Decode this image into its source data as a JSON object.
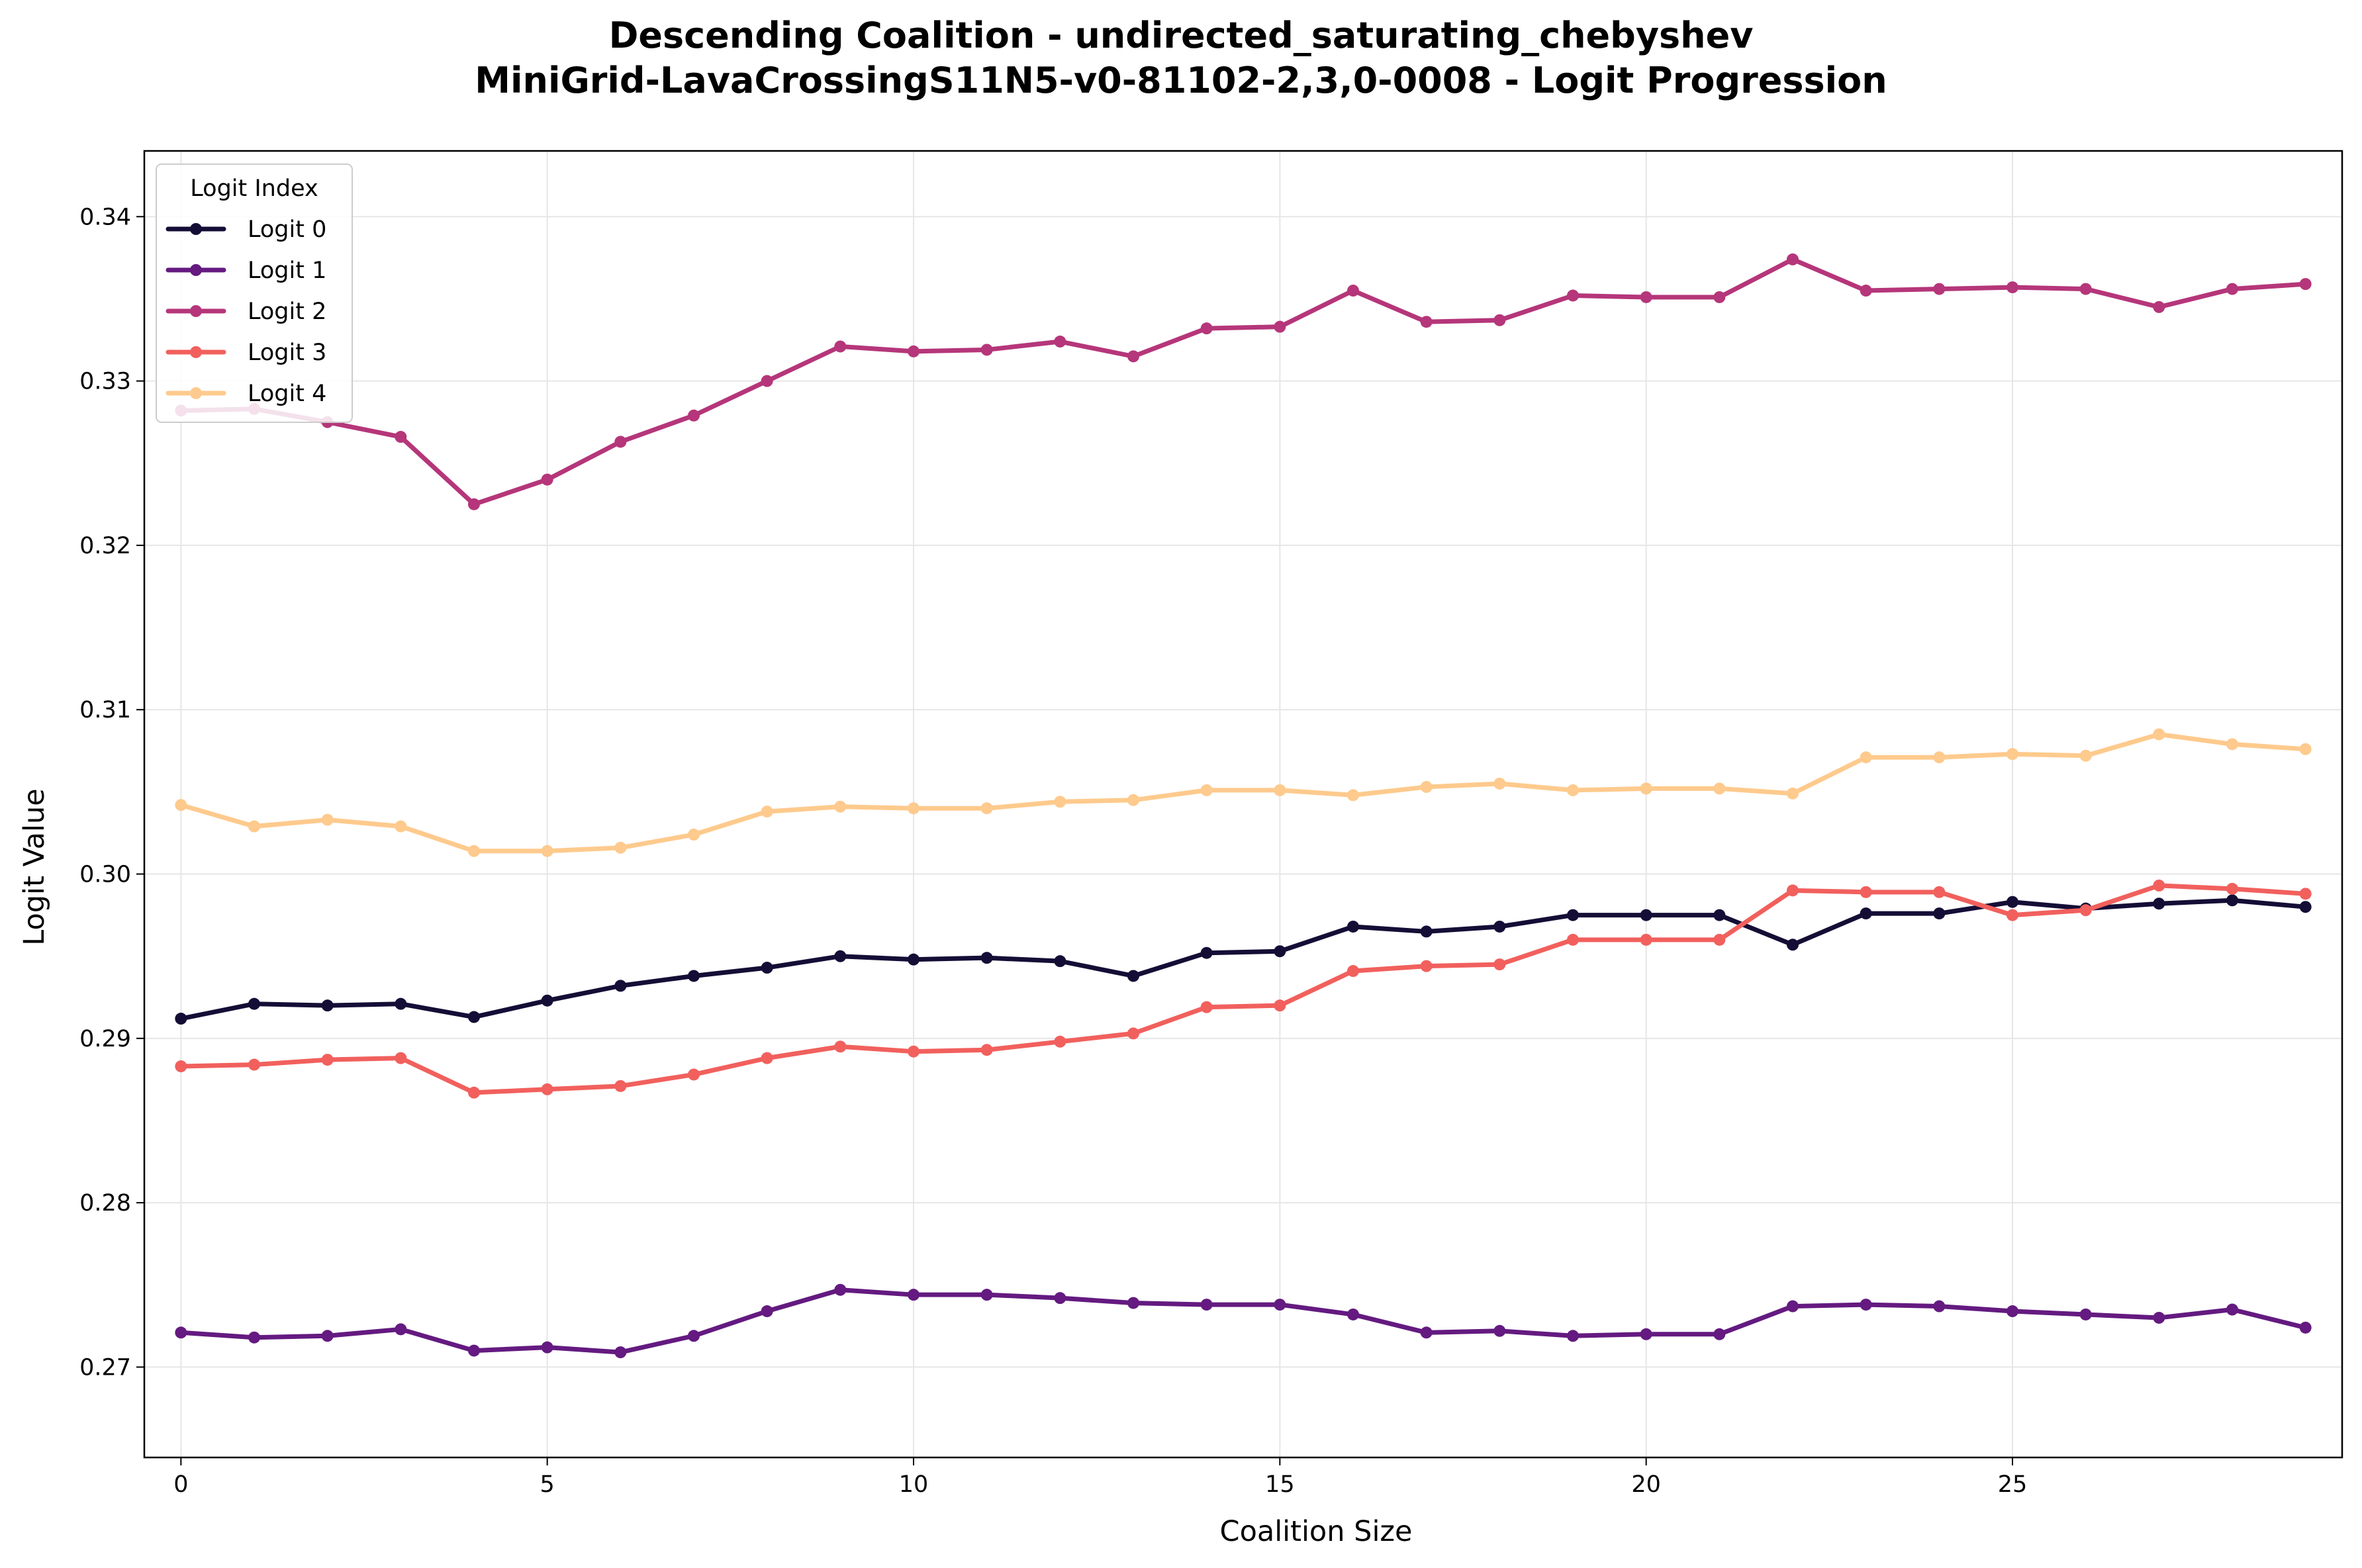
{
  "chart_data": {
    "type": "line",
    "title": [
      "Descending Coalition - undirected_saturating_chebyshev",
      "MiniGrid-LavaCrossingS11N5-v0-81102-2,3,0-0008 - Logit Progression"
    ],
    "xlabel": "Coalition Size",
    "ylabel": "Logit Value",
    "xlim": [
      -0.5,
      29.5
    ],
    "ylim": [
      0.2645,
      0.344
    ],
    "xticks": [
      0,
      5,
      10,
      15,
      20,
      25
    ],
    "yticks": [
      0.27,
      0.28,
      0.29,
      0.3,
      0.31,
      0.32,
      0.33,
      0.34
    ],
    "ytick_labels": [
      "0.27",
      "0.28",
      "0.29",
      "0.30",
      "0.31",
      "0.32",
      "0.33",
      "0.34"
    ],
    "grid": true,
    "legend": {
      "title": "Logit Index",
      "placement": "upper-left"
    },
    "x": [
      0,
      1,
      2,
      3,
      4,
      5,
      6,
      7,
      8,
      9,
      10,
      11,
      12,
      13,
      14,
      15,
      16,
      17,
      18,
      19,
      20,
      21,
      22,
      23,
      24,
      25,
      26,
      27,
      28,
      29
    ],
    "series": [
      {
        "name": "Logit 0",
        "color": "#140e36",
        "values": [
          0.2912,
          0.2921,
          0.292,
          0.2921,
          0.2913,
          0.2923,
          0.2932,
          0.2938,
          0.2943,
          0.295,
          0.2948,
          0.2949,
          0.2947,
          0.2938,
          0.2952,
          0.2953,
          0.2968,
          0.2965,
          0.2968,
          0.2975,
          0.2975,
          0.2975,
          0.2957,
          0.2976,
          0.2976,
          0.2983,
          0.2979,
          0.2982,
          0.2984,
          0.298
        ]
      },
      {
        "name": "Logit 1",
        "color": "#641a80",
        "values": [
          0.2721,
          0.2718,
          0.2719,
          0.2723,
          0.271,
          0.2712,
          0.2709,
          0.2719,
          0.2734,
          0.2747,
          0.2744,
          0.2744,
          0.2742,
          0.2739,
          0.2738,
          0.2738,
          0.2732,
          0.2721,
          0.2722,
          0.2719,
          0.272,
          0.272,
          0.2737,
          0.2738,
          0.2737,
          0.2734,
          0.2732,
          0.273,
          0.2735,
          0.2724
        ]
      },
      {
        "name": "Logit 2",
        "color": "#b5367a",
        "values": [
          0.3282,
          0.3283,
          0.3275,
          0.3266,
          0.3225,
          0.324,
          0.3263,
          0.3279,
          0.33,
          0.3321,
          0.3318,
          0.3319,
          0.3324,
          0.3315,
          0.3332,
          0.3333,
          0.3355,
          0.3336,
          0.3337,
          0.3352,
          0.3351,
          0.3351,
          0.3374,
          0.3355,
          0.3356,
          0.3357,
          0.3356,
          0.3345,
          0.3356,
          0.3359
        ]
      },
      {
        "name": "Logit 3",
        "color": "#f1605d",
        "values": [
          0.2883,
          0.2884,
          0.2887,
          0.2888,
          0.2867,
          0.2869,
          0.2871,
          0.2878,
          0.2888,
          0.2895,
          0.2892,
          0.2893,
          0.2898,
          0.2903,
          0.2919,
          0.292,
          0.2941,
          0.2944,
          0.2945,
          0.296,
          0.296,
          0.296,
          0.299,
          0.2989,
          0.2989,
          0.2975,
          0.2978,
          0.2993,
          0.2991,
          0.2988
        ]
      },
      {
        "name": "Logit 4",
        "color": "#feca8d",
        "values": [
          0.3042,
          0.3029,
          0.3033,
          0.3029,
          0.3014,
          0.3014,
          0.3016,
          0.3024,
          0.3038,
          0.3041,
          0.304,
          0.304,
          0.3044,
          0.3045,
          0.3051,
          0.3051,
          0.3048,
          0.3053,
          0.3055,
          0.3051,
          0.3052,
          0.3052,
          0.3049,
          0.3071,
          0.3071,
          0.3073,
          0.3072,
          0.3085,
          0.3079,
          0.3076
        ]
      }
    ]
  }
}
